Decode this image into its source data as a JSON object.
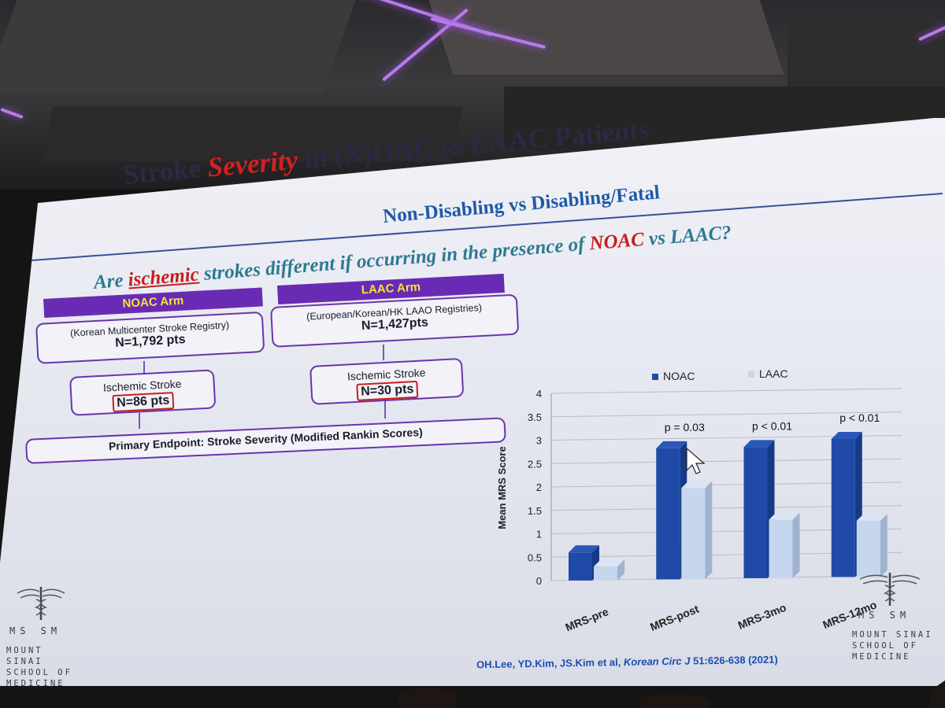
{
  "slide": {
    "title_parts": [
      "Stroke ",
      "Severity",
      " in (N)OAC ",
      "vs",
      " LAAC Patients"
    ],
    "subtitle": "Non-Disabling vs Disabling/Fatal",
    "question_parts": [
      "Are ",
      "ischemic",
      " strokes different if occurring in the presence of ",
      "NOAC",
      " vs LAAC?"
    ]
  },
  "flowchart": {
    "noac": {
      "arm": "NOAC Arm",
      "registry": "(Korean Multicenter Stroke Registry)",
      "n": "N=1,792 pts",
      "stroke_label": "Ischemic Stroke",
      "stroke_n": "N=86 pts"
    },
    "laac": {
      "arm": "LAAC Arm",
      "registry": "(European/Korean/HK LAAO Registries)",
      "n": "N=1,427pts",
      "stroke_label": "Ischemic Stroke",
      "stroke_n": "N=30 pts"
    },
    "endpoint": "Primary Endpoint: Stroke Severity (Modified Rankin Scores)"
  },
  "chart_data": {
    "type": "bar",
    "title": "",
    "ylabel": "Mean MRS Score",
    "xlabel": "",
    "ylim": [
      0,
      4
    ],
    "yticks": [
      "0",
      "0.5",
      "1",
      "1.5",
      "2",
      "2.5",
      "3",
      "3.5",
      "4"
    ],
    "categories": [
      "MRS-pre",
      "MRS-post",
      "MRS-3mo",
      "MRS-12mo"
    ],
    "series": [
      {
        "name": "NOAC",
        "color": "#1f4aa8",
        "values": [
          0.6,
          2.8,
          2.8,
          2.95
        ]
      },
      {
        "name": "LAAC",
        "color": "#c6d6ee",
        "values": [
          0.3,
          1.95,
          1.25,
          1.2
        ]
      }
    ],
    "annotations": [
      "",
      "p = 0.03",
      "p < 0.01",
      "p < 0.01"
    ],
    "legend_position": "top"
  },
  "logos": {
    "left_initials": "MS SM",
    "left_name": "MOUNT SINAI SCHOOL OF MEDICINE",
    "right_initials": "MS SM",
    "right_name": "MOUNT SINAI SCHOOL OF MEDICINE"
  },
  "citation": {
    "authors": "OH.Lee, YD.Kim, JS.Kim et al, ",
    "journal": "Korean Circ J",
    "ref": " 51:626-638 (2021)"
  }
}
